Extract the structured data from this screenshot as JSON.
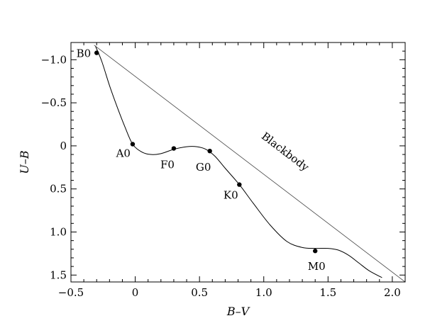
{
  "chart_data": {
    "type": "scatter",
    "xlabel": "B–V",
    "ylabel": "U–B",
    "xlim": [
      -0.5,
      2.1
    ],
    "ylim": [
      1.58,
      -1.2
    ],
    "y_inverted": true,
    "grid": false,
    "x_ticks": [
      {
        "value": -0.5,
        "label": "−0.5"
      },
      {
        "value": 0.0,
        "label": "0"
      },
      {
        "value": 0.5,
        "label": "0.5"
      },
      {
        "value": 1.0,
        "label": "1.0"
      },
      {
        "value": 1.5,
        "label": "1.5"
      },
      {
        "value": 2.0,
        "label": "2.0"
      }
    ],
    "y_ticks": [
      {
        "value": -1.0,
        "label": "−1.0"
      },
      {
        "value": -0.5,
        "label": "−0.5"
      },
      {
        "value": 0.0,
        "label": "0"
      },
      {
        "value": 0.5,
        "label": "0.5"
      },
      {
        "value": 1.0,
        "label": "1.0"
      },
      {
        "value": 1.5,
        "label": "1.5"
      }
    ],
    "points": [
      {
        "label": "B0",
        "x": -0.3,
        "y": -1.08
      },
      {
        "label": "A0",
        "x": -0.02,
        "y": -0.02
      },
      {
        "label": "F0",
        "x": 0.3,
        "y": 0.03
      },
      {
        "label": "G0",
        "x": 0.58,
        "y": 0.06
      },
      {
        "label": "K0",
        "x": 0.81,
        "y": 0.45
      },
      {
        "label": "M0",
        "x": 1.4,
        "y": 1.22
      }
    ],
    "series": [
      {
        "type": "line",
        "x": [
          -0.31,
          -0.26,
          -0.2,
          -0.14,
          -0.08,
          -0.02,
          0.05,
          0.12,
          0.2,
          0.3,
          0.4,
          0.48,
          0.55,
          0.62,
          0.7,
          0.81,
          0.92,
          1.05,
          1.18,
          1.3,
          1.4,
          1.5,
          1.58,
          1.66,
          1.74,
          1.82,
          1.92
        ],
        "y": [
          -1.16,
          -0.98,
          -0.7,
          -0.45,
          -0.22,
          -0.02,
          0.07,
          0.1,
          0.09,
          0.04,
          0.01,
          0.01,
          0.04,
          0.12,
          0.26,
          0.45,
          0.67,
          0.92,
          1.11,
          1.18,
          1.19,
          1.19,
          1.21,
          1.27,
          1.36,
          1.45,
          1.53
        ]
      },
      {
        "name": "Blackbody",
        "type": "line",
        "x": [
          -0.32,
          2.1
        ],
        "y": [
          -1.17,
          1.58
        ]
      }
    ],
    "annotations": [
      {
        "text": "Blackbody",
        "x": 1.15,
        "y": 0.1
      }
    ]
  }
}
